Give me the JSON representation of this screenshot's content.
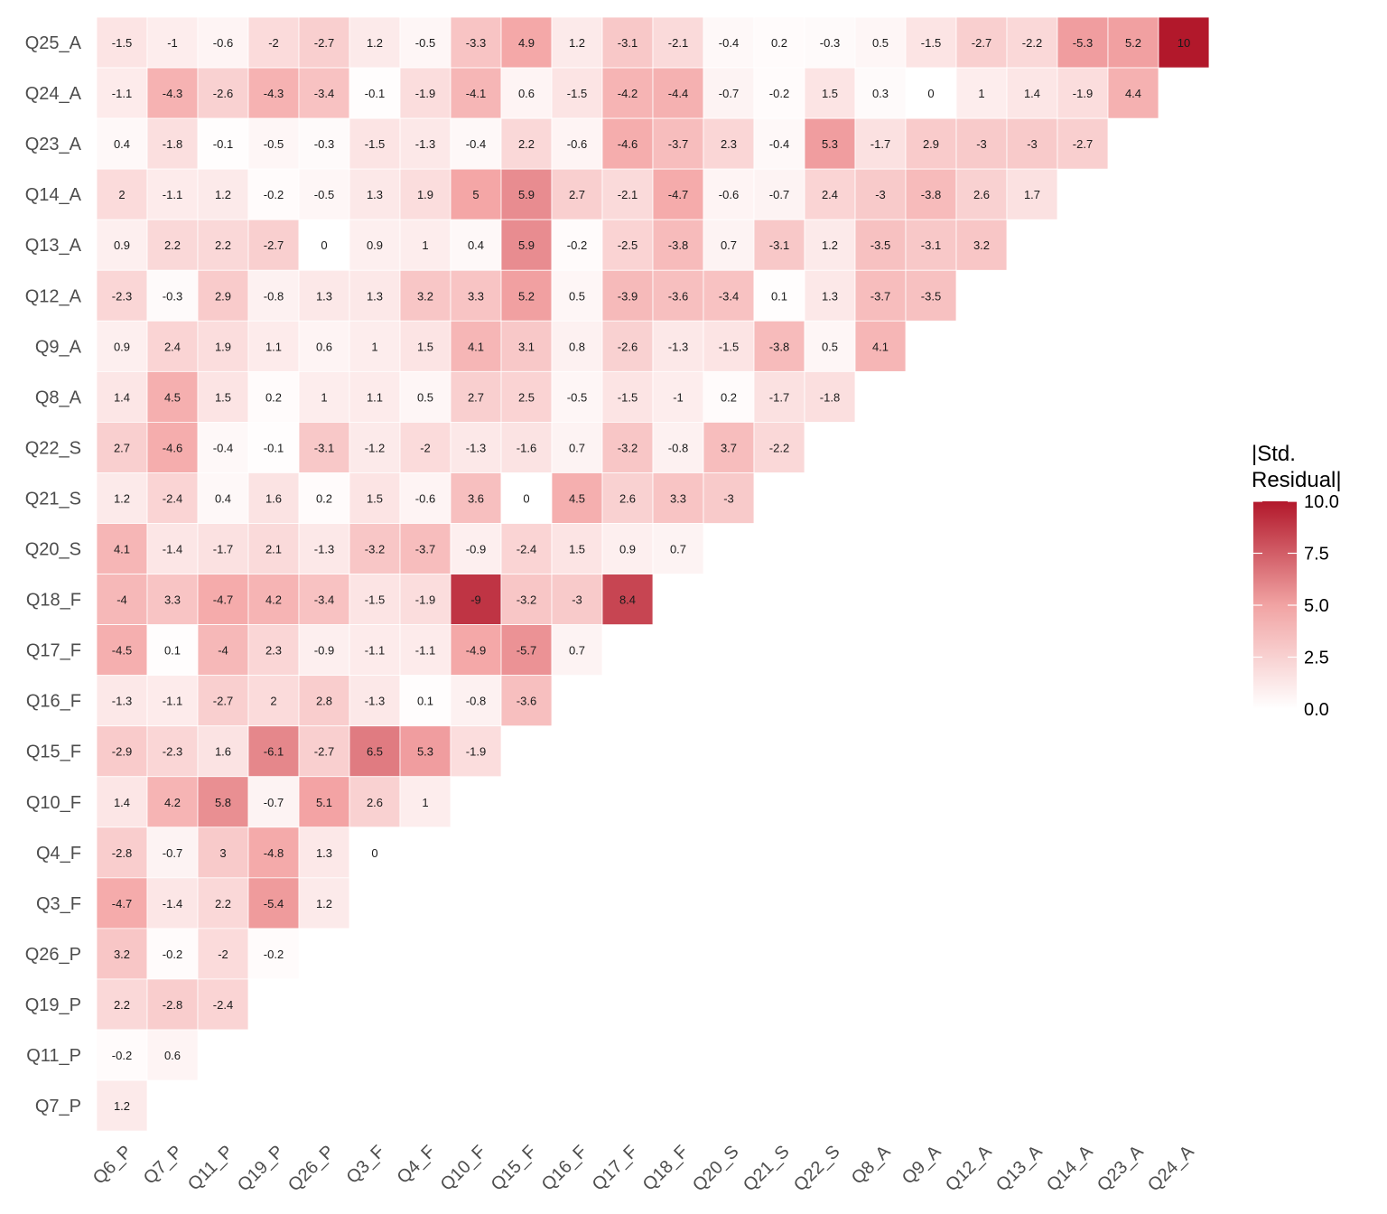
{
  "chart_data": {
    "type": "heatmap",
    "title": "",
    "xlabel": "",
    "ylabel": "",
    "x_categories": [
      "Q6_P",
      "Q7_P",
      "Q11_P",
      "Q19_P",
      "Q26_P",
      "Q3_F",
      "Q4_F",
      "Q10_F",
      "Q15_F",
      "Q16_F",
      "Q17_F",
      "Q18_F",
      "Q20_S",
      "Q21_S",
      "Q22_S",
      "Q8_A",
      "Q9_A",
      "Q12_A",
      "Q13_A",
      "Q14_A",
      "Q23_A",
      "Q24_A"
    ],
    "y_categories": [
      "Q25_A",
      "Q24_A",
      "Q23_A",
      "Q14_A",
      "Q13_A",
      "Q12_A",
      "Q9_A",
      "Q8_A",
      "Q22_S",
      "Q21_S",
      "Q20_S",
      "Q18_F",
      "Q17_F",
      "Q16_F",
      "Q15_F",
      "Q10_F",
      "Q4_F",
      "Q3_F",
      "Q26_P",
      "Q19_P",
      "Q11_P",
      "Q7_P"
    ],
    "values": [
      [
        -1.5,
        -1,
        -0.6,
        -2,
        -2.7,
        1.2,
        -0.5,
        -3.3,
        4.9,
        1.2,
        -3.1,
        -2.1,
        -0.4,
        0.2,
        -0.3,
        0.5,
        -1.5,
        -2.7,
        -2.2,
        -5.3,
        5.2,
        10
      ],
      [
        -1.1,
        -4.3,
        -2.6,
        -4.3,
        -3.4,
        -0.1,
        -1.9,
        -4.1,
        0.6,
        -1.5,
        -4.2,
        -4.4,
        -0.7,
        -0.2,
        1.5,
        0.3,
        0,
        1,
        1.4,
        -1.9,
        4.4
      ],
      [
        0.4,
        -1.8,
        -0.1,
        -0.5,
        -0.3,
        -1.5,
        -1.3,
        -0.4,
        2.2,
        -0.6,
        -4.6,
        -3.7,
        2.3,
        -0.4,
        5.3,
        -1.7,
        2.9,
        -3,
        -3,
        -2.7
      ],
      [
        2,
        -1.1,
        1.2,
        -0.2,
        -0.5,
        1.3,
        1.9,
        5,
        5.9,
        2.7,
        -2.1,
        -4.7,
        -0.6,
        -0.7,
        2.4,
        -3,
        -3.8,
        2.6,
        1.7
      ],
      [
        0.9,
        2.2,
        2.2,
        -2.7,
        0,
        0.9,
        1,
        0.4,
        5.9,
        -0.2,
        -2.5,
        -3.8,
        0.7,
        -3.1,
        1.2,
        -3.5,
        -3.1,
        3.2
      ],
      [
        -2.3,
        -0.3,
        2.9,
        -0.8,
        1.3,
        1.3,
        3.2,
        3.3,
        5.2,
        0.5,
        -3.9,
        -3.6,
        -3.4,
        0.1,
        1.3,
        -3.7,
        -3.5
      ],
      [
        0.9,
        2.4,
        1.9,
        1.1,
        0.6,
        1,
        1.5,
        4.1,
        3.1,
        0.8,
        -2.6,
        -1.3,
        -1.5,
        -3.8,
        0.5,
        4.1
      ],
      [
        1.4,
        4.5,
        1.5,
        0.2,
        1,
        1.1,
        0.5,
        2.7,
        2.5,
        -0.5,
        -1.5,
        -1,
        0.2,
        -1.7,
        -1.8
      ],
      [
        2.7,
        -4.6,
        -0.4,
        -0.1,
        -3.1,
        -1.2,
        -2,
        -1.3,
        -1.6,
        0.7,
        -3.2,
        -0.8,
        3.7,
        -2.2
      ],
      [
        1.2,
        -2.4,
        0.4,
        1.6,
        0.2,
        1.5,
        -0.6,
        3.6,
        0,
        4.5,
        2.6,
        3.3,
        -3
      ],
      [
        4.1,
        -1.4,
        -1.7,
        2.1,
        -1.3,
        -3.2,
        -3.7,
        -0.9,
        -2.4,
        1.5,
        0.9,
        0.7
      ],
      [
        -4,
        3.3,
        -4.7,
        4.2,
        -3.4,
        -1.5,
        -1.9,
        -9,
        -3.2,
        -3,
        8.4
      ],
      [
        -4.5,
        0.1,
        -4,
        2.3,
        -0.9,
        -1.1,
        -1.1,
        -4.9,
        -5.7,
        0.7
      ],
      [
        -1.3,
        -1.1,
        -2.7,
        2,
        2.8,
        -1.3,
        0.1,
        -0.8,
        -3.6
      ],
      [
        -2.9,
        -2.3,
        1.6,
        -6.1,
        -2.7,
        6.5,
        5.3,
        -1.9
      ],
      [
        1.4,
        4.2,
        5.8,
        -0.7,
        5.1,
        2.6,
        1
      ],
      [
        -2.8,
        -0.7,
        3,
        -4.8,
        1.3,
        0
      ],
      [
        -4.7,
        -1.4,
        2.2,
        -5.4,
        1.2
      ],
      [
        3.2,
        -0.2,
        -2,
        -0.2
      ],
      [
        2.2,
        -2.8,
        -2.4
      ],
      [
        -0.2,
        0.6
      ],
      [
        1.2
      ]
    ],
    "color_scale": {
      "low_color": "#ffffff",
      "mid_color": "#f4a6a6",
      "high_color": "#b2182b",
      "domain": [
        0,
        10
      ]
    },
    "legend": {
      "title_line1": "|Std.",
      "title_line2": "Residual|",
      "ticks": [
        "10.0",
        "7.5",
        "5.0",
        "2.5",
        "0.0"
      ],
      "tick_values": [
        10,
        7.5,
        5,
        2.5,
        0
      ],
      "placement": "right"
    },
    "grid": false
  }
}
